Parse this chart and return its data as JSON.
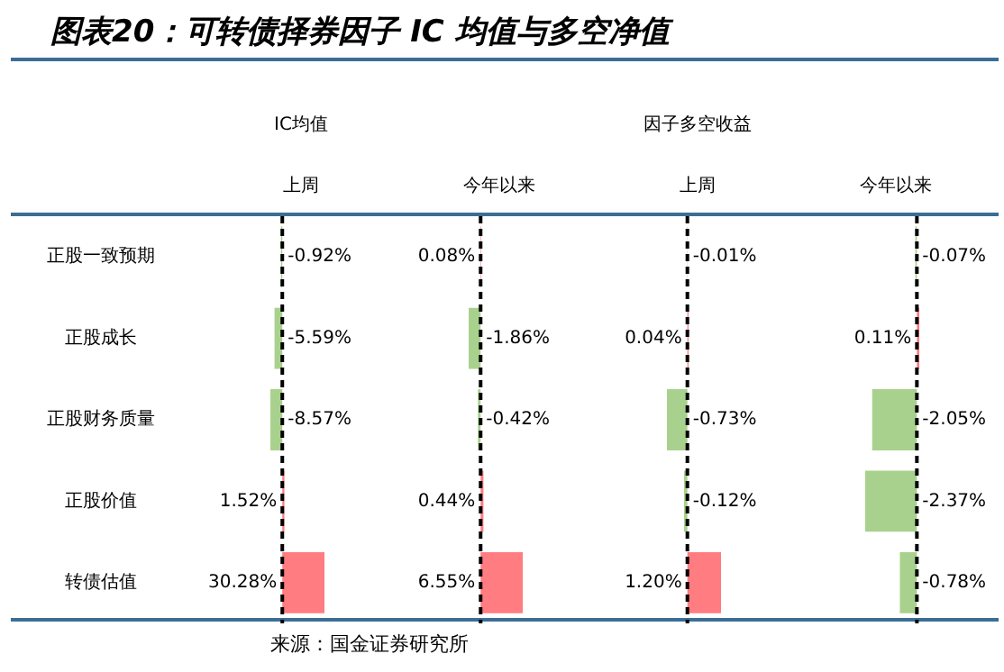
{
  "chart_data": [
    {
      "type": "bar",
      "orientation": "horizontal",
      "title": "图表20：可转债择券因子 IC 均值与多空净值",
      "subtitle": "IC均值",
      "xlabel": "上周",
      "categories": [
        "正股一致预期",
        "正股成长",
        "正股财务质量",
        "正股价值",
        "转债估值"
      ],
      "values": [
        -0.92,
        -5.59,
        -8.57,
        1.52,
        30.28
      ],
      "value_labels": [
        "-0.92%",
        "-5.59%",
        "-8.57%",
        "1.52%",
        "30.28%"
      ],
      "colors": [
        "#a9d18e",
        "#a9d18e",
        "#a9d18e",
        "#ff7c80",
        "#ff7c80"
      ],
      "ref_lines": [
        {
          "axis": "x",
          "value": 0,
          "color": "#000000",
          "line_style": "dashed"
        }
      ],
      "tick_labels": "y",
      "annotations": [
        "来源：国金证券研究所"
      ]
    },
    {
      "type": "bar",
      "orientation": "horizontal",
      "xlabel": "今年以来",
      "categories": [
        null,
        null,
        null,
        null,
        null
      ],
      "values": [
        0.08,
        -1.86,
        -0.42,
        0.44,
        6.55
      ],
      "value_labels": [
        "0.08%",
        "-1.86%",
        "-0.42%",
        "0.44%",
        "6.55%"
      ],
      "colors": [
        "#ff7c80",
        "#a9d18e",
        "#a9d18e",
        "#ff7c80",
        "#ff7c80"
      ],
      "ref_lines": [
        {
          "axis": "x",
          "value": 0,
          "color": "#000000",
          "line_style": "dashed"
        }
      ],
      "tick_labels": false
    },
    {
      "type": "bar",
      "orientation": "horizontal",
      "subtitle": "因子多空收益",
      "xlabel": "上周",
      "categories": [
        null,
        null,
        null,
        null,
        null
      ],
      "values": [
        -0.01,
        0.04,
        -0.73,
        -0.12,
        1.2
      ],
      "value_labels": [
        "-0.01%",
        "0.04%",
        "-0.73%",
        "-0.12%",
        "1.20%"
      ],
      "colors": [
        "#a9d18e",
        "#ff7c80",
        "#a9d18e",
        "#a9d18e",
        "#ff7c80"
      ],
      "ref_lines": [
        {
          "axis": "x",
          "value": 0,
          "color": "#000000",
          "line_style": "dashed"
        }
      ],
      "tick_labels": false
    },
    {
      "type": "bar",
      "orientation": "horizontal",
      "xlabel": "今年以来",
      "categories": [
        null,
        null,
        null,
        null,
        null
      ],
      "values": [
        -0.07,
        0.11,
        -2.05,
        -2.37,
        -0.78
      ],
      "value_labels": [
        "-0.07%",
        "0.11%",
        "-2.05%",
        "-2.37%",
        "-0.78%"
      ],
      "colors": [
        "#a9d18e",
        "#ff7c80",
        "#a9d18e",
        "#a9d18e",
        "#a9d18e"
      ],
      "ref_lines": [
        {
          "axis": "x",
          "value": 0,
          "color": "#000000",
          "line_style": "dashed"
        }
      ],
      "tick_labels": false
    }
  ]
}
